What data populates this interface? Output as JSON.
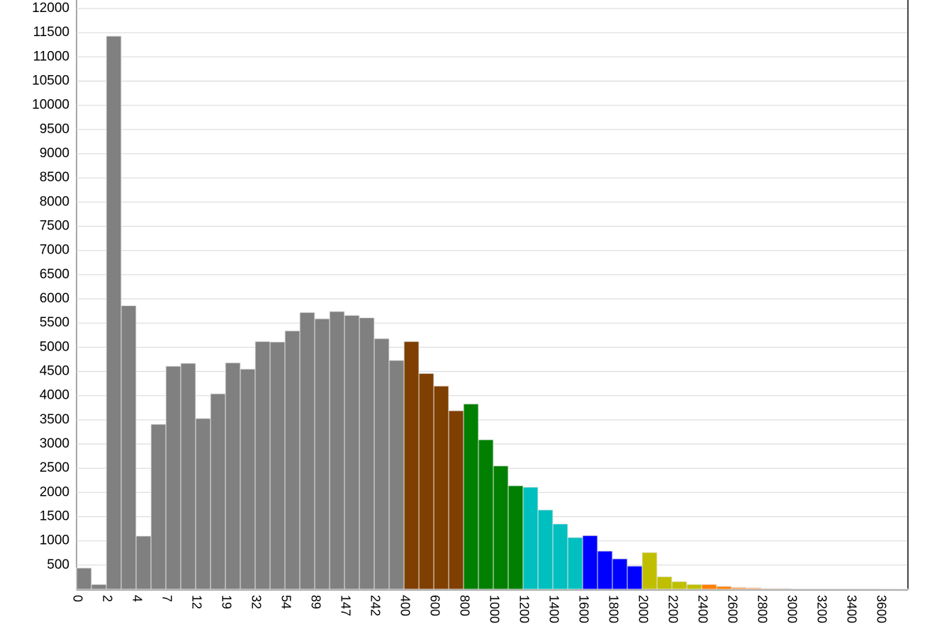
{
  "chart_data": {
    "type": "bar",
    "categories": [
      "0",
      null,
      "2",
      null,
      "4",
      null,
      "7",
      null,
      "12",
      null,
      "19",
      null,
      "32",
      null,
      "54",
      null,
      "89",
      null,
      "147",
      null,
      "242",
      null,
      "400",
      null,
      "600",
      null,
      "800",
      null,
      "1000",
      null,
      "1200",
      null,
      "1400",
      null,
      "1600",
      null,
      "1800",
      null,
      "2000",
      null,
      "2200",
      null,
      "2400",
      null,
      "2600",
      null,
      "2800",
      null,
      "3000",
      null,
      "3200",
      null,
      "3400",
      null,
      "3600",
      null
    ],
    "values": [
      440,
      100,
      11430,
      5860,
      1100,
      3410,
      4610,
      4670,
      3530,
      4040,
      4680,
      4550,
      5120,
      5110,
      5340,
      5720,
      5590,
      5740,
      5660,
      5610,
      5180,
      4730,
      5120,
      4460,
      4200,
      3690,
      3830,
      3090,
      2550,
      2140,
      2110,
      1640,
      1350,
      1070,
      1110,
      790,
      630,
      480,
      760,
      260,
      160,
      100,
      100,
      60,
      40,
      30,
      20,
      20,
      10,
      10,
      10,
      10,
      10,
      10,
      5,
      5
    ],
    "colors": [
      "#808080",
      "#808080",
      "#808080",
      "#808080",
      "#808080",
      "#808080",
      "#808080",
      "#808080",
      "#808080",
      "#808080",
      "#808080",
      "#808080",
      "#808080",
      "#808080",
      "#808080",
      "#808080",
      "#808080",
      "#808080",
      "#808080",
      "#808080",
      "#808080",
      "#808080",
      "#7f3f00",
      "#7f3f00",
      "#7f3f00",
      "#7f3f00",
      "#007f00",
      "#007f00",
      "#007f00",
      "#007f00",
      "#00bfbf",
      "#00bfbf",
      "#00bfbf",
      "#00bfbf",
      "#0000ff",
      "#0000ff",
      "#0000ff",
      "#0000ff",
      "#bfbf00",
      "#bfbf00",
      "#bfbf00",
      "#bfbf00",
      "#ff7f00",
      "#ff7f00",
      "#ffa050",
      "#ffa050",
      "#ffc090",
      "#ffc090",
      "#c0c0c0",
      "#c0c0c0",
      "#c0c0c0",
      "#c0c0c0",
      "#c0c0c0",
      "#c0c0c0",
      "#c0c0c0",
      "#c0c0c0"
    ],
    "ylim": [
      0,
      12000
    ],
    "yticks": [
      500,
      1000,
      1500,
      2000,
      2500,
      3000,
      3500,
      4000,
      4500,
      5000,
      5500,
      6000,
      6500,
      7000,
      7500,
      8000,
      8500,
      9000,
      9500,
      10000,
      10500,
      11000,
      11500,
      12000
    ],
    "grid": true
  }
}
